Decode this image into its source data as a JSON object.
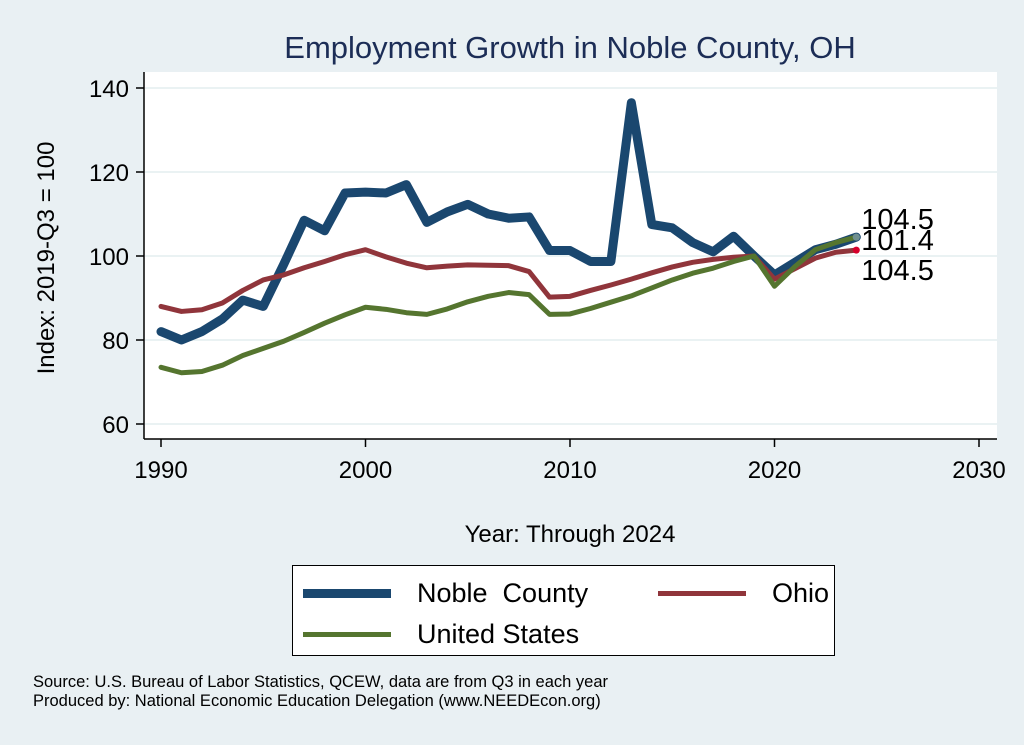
{
  "chart_data": {
    "type": "line",
    "title": "Employment Growth in Noble County, OH",
    "xlabel": "Year: Through 2024",
    "ylabel": "Index: 2019-Q3 = 100",
    "xlim": [
      1990,
      2030
    ],
    "ylim": [
      60,
      140
    ],
    "xticks": [
      1990,
      2000,
      2010,
      2020,
      2030
    ],
    "yticks": [
      60,
      80,
      100,
      120,
      140
    ],
    "grid": "horizontal",
    "legend_position": "bottom",
    "x": [
      1990,
      1991,
      1992,
      1993,
      1994,
      1995,
      1996,
      1997,
      1998,
      1999,
      2000,
      2001,
      2002,
      2003,
      2004,
      2005,
      2006,
      2007,
      2008,
      2009,
      2010,
      2011,
      2012,
      2013,
      2014,
      2015,
      2016,
      2017,
      2018,
      2019,
      2020,
      2021,
      2022,
      2023,
      2024
    ],
    "series": [
      {
        "name": "Noble  County",
        "color": "#1a476f",
        "values": [
          82,
          80,
          82,
          85,
          89.5,
          88,
          98,
          108.5,
          106,
          115,
          115.2,
          115,
          117,
          108,
          110.5,
          112.3,
          110,
          109,
          109.3,
          101.3,
          101.3,
          98.7,
          98.7,
          136.5,
          107.5,
          106.7,
          103.2,
          101,
          104.7,
          100,
          95.5,
          98.5,
          101.5,
          102.8,
          104.5
        ],
        "end_label": "104.5",
        "end_marker_color": "#6f8f90"
      },
      {
        "name": "Ohio",
        "color": "#90353b",
        "values": [
          88,
          86.8,
          87.2,
          88.8,
          91.8,
          94.3,
          95.5,
          97.2,
          98.7,
          100.3,
          101.5,
          99.8,
          98.3,
          97.2,
          97.6,
          97.9,
          97.8,
          97.7,
          96.3,
          90.2,
          90.4,
          91.8,
          93.1,
          94.5,
          96,
          97.4,
          98.5,
          99.2,
          99.7,
          100,
          94.5,
          97,
          99.5,
          100.9,
          101.4
        ],
        "end_label": "101.4",
        "end_marker_color": "#d6002b"
      },
      {
        "name": "United States",
        "color": "#55752f",
        "values": [
          73.5,
          72.2,
          72.5,
          74,
          76.3,
          78,
          79.7,
          81.8,
          84,
          86,
          87.8,
          87.3,
          86.5,
          86.1,
          87.4,
          89.1,
          90.4,
          91.3,
          90.8,
          86.1,
          86.2,
          87.5,
          89,
          90.5,
          92.4,
          94.3,
          95.9,
          97.1,
          98.7,
          100,
          92.8,
          97.5,
          101.5,
          103.2,
          104.5
        ],
        "end_label": "104.5",
        "end_marker_color": "#6f8f90"
      }
    ],
    "notes": [
      "Source: U.S. Bureau of Labor Statistics, QCEW, data are from Q3 in each year",
      "Produced by: National Economic Education Delegation (www.NEEDEcon.org)"
    ]
  }
}
